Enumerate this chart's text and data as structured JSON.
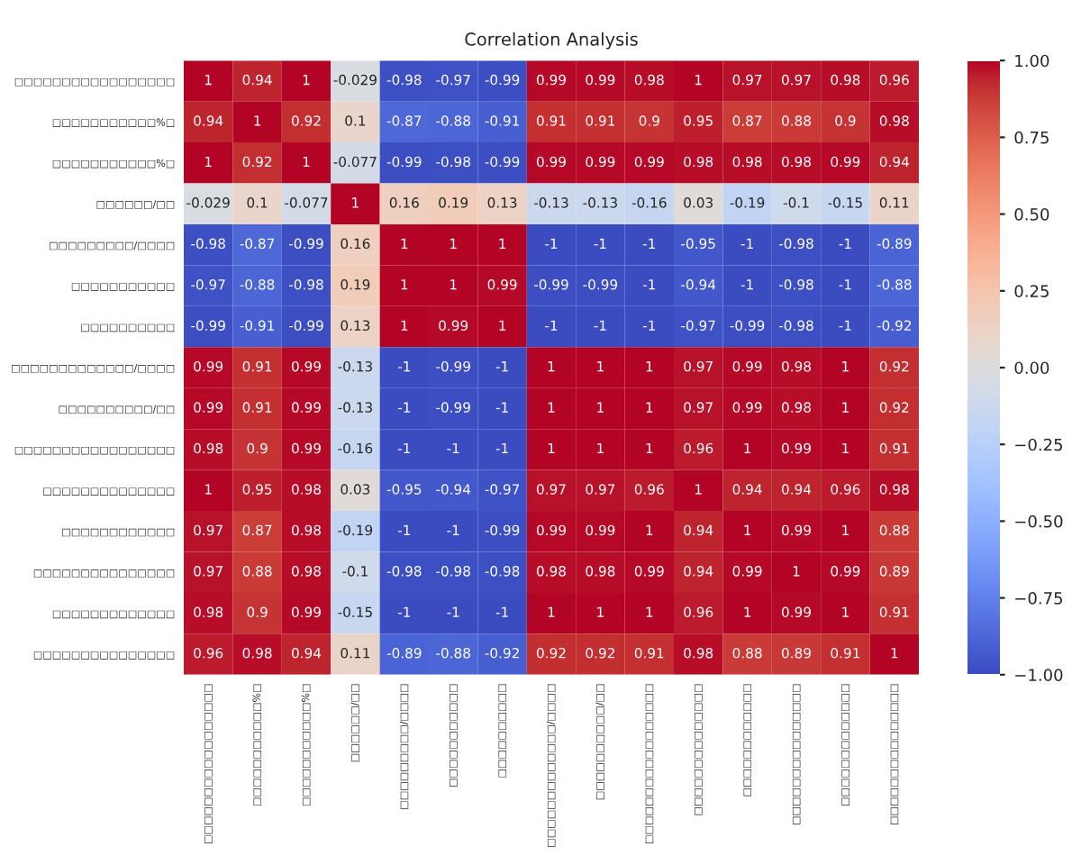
{
  "chart_data": {
    "type": "heatmap",
    "title": "Correlation Analysis",
    "categories": [
      "□□□□□□□□□□□□□□□□□",
      "□□□□□□□□□□□%□",
      "□□□□□□□□□□□%□",
      "□□□□□□/□□",
      "□□□□□□□□□/□□□□",
      "□□□□□□□□□□□",
      "□□□□□□□□□□",
      "□□□□□□□□□□□□□/□□□□",
      "□□□□□□□□□□/□□",
      "□□□□□□□□□□□□□□□□□",
      "□□□□□□□□□□□□□□",
      "□□□□□□□□□□□□",
      "□□□□□□□□□□□□□□□",
      "□□□□□□□□□□□□□",
      "□□□□□□□□□□□□□□□"
    ],
    "y_categories": [
      "□□□□□□□□□□□□□□□□□",
      "□□□□□□□□□□□%□",
      "□□□□□□□□□□□%□",
      "□□□□□□/□□",
      "□□□□□□□□□/□□□□",
      "□□□□□□□□□□□",
      "□□□□□□□□□□",
      "□□□□□□□□□□□□□/□□□□",
      "□□□□□□□□□□/□□",
      "□□□□□□□□□□□□□□□□□",
      "□□□□□□□□□□□□□□",
      "□□□□□□□□□□□□",
      "□□□□□□□□□□□□□□□",
      "□□□□□□□□□□□□□",
      "□□□□□□□□□□□□□□□"
    ],
    "cells": [
      [
        1,
        0.94,
        1,
        -0.029,
        -0.98,
        -0.97,
        -0.99,
        0.99,
        0.99,
        0.98,
        1,
        0.97,
        0.97,
        0.98,
        0.96
      ],
      [
        0.94,
        1,
        0.92,
        0.1,
        -0.87,
        -0.88,
        -0.91,
        0.91,
        0.91,
        0.9,
        0.95,
        0.87,
        0.88,
        0.9,
        0.98
      ],
      [
        1,
        0.92,
        1,
        -0.077,
        -0.99,
        -0.98,
        -0.99,
        0.99,
        0.99,
        0.99,
        0.98,
        0.98,
        0.98,
        0.99,
        0.94
      ],
      [
        -0.029,
        0.1,
        -0.077,
        1,
        0.16,
        0.19,
        0.13,
        -0.13,
        -0.13,
        -0.16,
        0.03,
        -0.19,
        -0.1,
        -0.15,
        0.11
      ],
      [
        -0.98,
        -0.87,
        -0.99,
        0.16,
        1,
        1,
        1,
        -1,
        -1,
        -1,
        -0.95,
        -1,
        -0.98,
        -1,
        -0.89
      ],
      [
        -0.97,
        -0.88,
        -0.98,
        0.19,
        1,
        1,
        0.99,
        -0.99,
        -0.99,
        -1,
        -0.94,
        -1,
        -0.98,
        -1,
        -0.88
      ],
      [
        -0.99,
        -0.91,
        -0.99,
        0.13,
        1,
        0.99,
        1,
        -1,
        -1,
        -1,
        -0.97,
        -0.99,
        -0.98,
        -1,
        -0.92
      ],
      [
        0.99,
        0.91,
        0.99,
        -0.13,
        -1,
        -0.99,
        -1,
        1,
        1,
        1,
        0.97,
        0.99,
        0.98,
        1,
        0.92
      ],
      [
        0.99,
        0.91,
        0.99,
        -0.13,
        -1,
        -0.99,
        -1,
        1,
        1,
        1,
        0.97,
        0.99,
        0.98,
        1,
        0.92
      ],
      [
        0.98,
        0.9,
        0.99,
        -0.16,
        -1,
        -1,
        -1,
        1,
        1,
        1,
        0.96,
        1,
        0.99,
        1,
        0.91
      ],
      [
        1,
        0.95,
        0.98,
        0.03,
        -0.95,
        -0.94,
        -0.97,
        0.97,
        0.97,
        0.96,
        1,
        0.94,
        0.94,
        0.96,
        0.98
      ],
      [
        0.97,
        0.87,
        0.98,
        -0.19,
        -1,
        -1,
        -0.99,
        0.99,
        0.99,
        1,
        0.94,
        1,
        0.99,
        1,
        0.88
      ],
      [
        0.97,
        0.88,
        0.98,
        -0.1,
        -0.98,
        -0.98,
        -0.98,
        0.98,
        0.98,
        0.99,
        0.94,
        0.99,
        1,
        0.99,
        0.89
      ],
      [
        0.98,
        0.9,
        0.99,
        -0.15,
        -1,
        -1,
        -1,
        1,
        1,
        1,
        0.96,
        1,
        0.99,
        1,
        0.91
      ],
      [
        0.96,
        0.98,
        0.94,
        0.11,
        -0.89,
        -0.88,
        -0.92,
        0.92,
        0.92,
        0.91,
        0.98,
        0.88,
        0.89,
        0.91,
        1
      ]
    ],
    "data_labels": true,
    "clim": [
      -1,
      1
    ],
    "cticks": [
      {
        "value": -1,
        "label": "−1.00"
      },
      {
        "value": -0.75,
        "label": "−0.75"
      },
      {
        "value": -0.5,
        "label": "−0.50"
      },
      {
        "value": -0.25,
        "label": "−0.25"
      },
      {
        "value": 0,
        "label": "0.00"
      },
      {
        "value": 0.25,
        "label": "0.25"
      },
      {
        "value": 0.5,
        "label": "0.50"
      },
      {
        "value": 0.75,
        "label": "0.75"
      },
      {
        "value": 1,
        "label": "1.00"
      }
    ]
  }
}
